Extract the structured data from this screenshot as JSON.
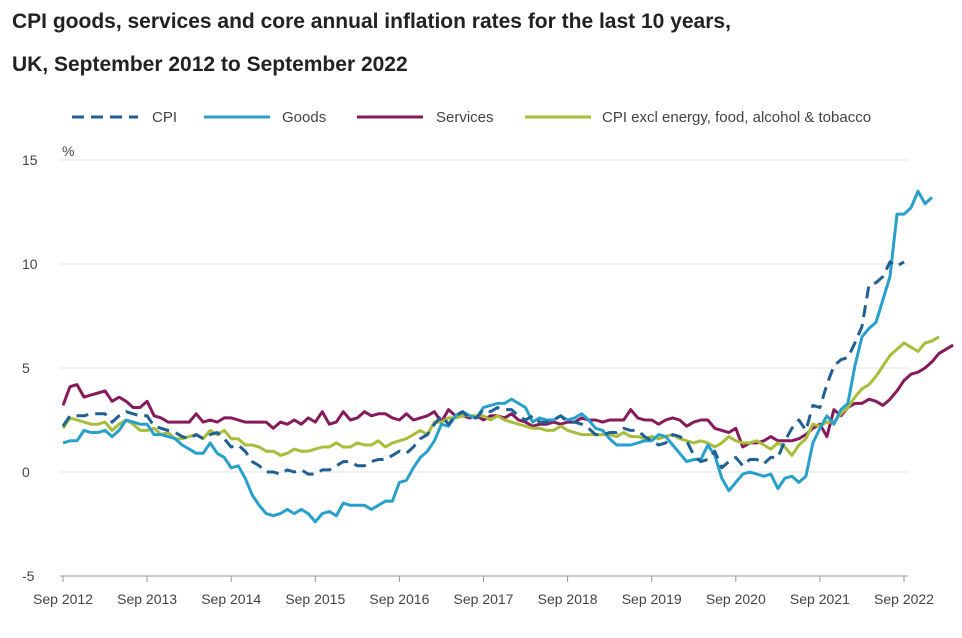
{
  "chart_data": {
    "type": "line",
    "title": "CPI goods, services and core annual inflation rates for the last 10 years,",
    "subtitle": "UK, September 2012 to September 2022",
    "ylabel": "%",
    "ylim": [
      -5,
      15
    ],
    "yticks": [
      "15",
      "10",
      "5",
      "0",
      "-5"
    ],
    "ytick_values": [
      15,
      10,
      5,
      0,
      -5
    ],
    "xticks": [
      "Sep 2012",
      "Sep 2013",
      "Sep 2014",
      "Sep 2015",
      "Sep 2016",
      "Sep 2017",
      "Sep 2018",
      "Sep 2019",
      "Sep 2020",
      "Sep 2021",
      "Sep 2022"
    ],
    "grid": true,
    "legend_position": "top",
    "series": [
      {
        "name": "CPI",
        "color": "#206095",
        "style": "dashed",
        "values": [
          2.2,
          2.7,
          2.7,
          2.7,
          2.8,
          2.8,
          2.8,
          2.4,
          2.7,
          2.9,
          2.8,
          2.7,
          2.7,
          2.2,
          2.1,
          2.0,
          1.9,
          1.7,
          1.6,
          1.8,
          1.6,
          1.8,
          1.9,
          1.6,
          1.2,
          1.3,
          1.0,
          0.5,
          0.3,
          0.0,
          0.0,
          -0.1,
          0.1,
          0.0,
          0.1,
          -0.1,
          -0.1,
          0.1,
          0.1,
          0.3,
          0.5,
          0.5,
          0.3,
          0.3,
          0.5,
          0.6,
          0.6,
          0.8,
          1.0,
          0.9,
          1.2,
          1.6,
          1.8,
          2.3,
          2.7,
          2.3,
          2.7,
          2.9,
          2.6,
          2.6,
          3.0,
          2.9,
          3.1,
          3.0,
          3.0,
          2.7,
          2.5,
          2.7,
          2.4,
          2.4,
          2.5,
          2.7,
          2.4,
          2.4,
          2.3,
          2.1,
          1.8,
          1.8,
          1.9,
          1.9,
          2.1,
          2.0,
          2.0,
          1.7,
          1.5,
          1.3,
          1.4,
          1.8,
          1.7,
          1.5,
          0.8,
          0.5,
          0.6,
          1.0,
          0.2,
          0.5,
          0.7,
          0.3,
          0.6,
          0.6,
          0.4,
          0.7,
          0.7,
          1.5,
          2.1,
          2.5,
          2.0,
          3.2,
          3.1,
          4.2,
          5.1,
          5.4,
          5.5,
          6.2,
          7.0,
          9.0,
          9.1,
          9.4,
          10.1,
          9.9,
          10.1
        ]
      },
      {
        "name": "Goods",
        "color": "#27a0cc",
        "style": "solid",
        "values": [
          1.4,
          1.5,
          1.5,
          2.0,
          1.9,
          1.9,
          2.0,
          1.7,
          2.0,
          2.5,
          2.4,
          2.3,
          2.3,
          1.8,
          1.8,
          1.7,
          1.6,
          1.3,
          1.1,
          0.9,
          0.9,
          1.4,
          0.9,
          0.7,
          0.2,
          0.3,
          -0.3,
          -1.1,
          -1.6,
          -2.0,
          -2.1,
          -2.0,
          -1.8,
          -2.0,
          -1.8,
          -2.0,
          -2.4,
          -2.0,
          -1.9,
          -2.1,
          -1.5,
          -1.6,
          -1.6,
          -1.6,
          -1.8,
          -1.6,
          -1.4,
          -1.4,
          -0.5,
          -0.4,
          0.2,
          0.7,
          1.0,
          1.5,
          2.3,
          2.2,
          2.7,
          2.9,
          2.7,
          2.6,
          3.1,
          3.2,
          3.3,
          3.3,
          3.5,
          3.3,
          3.1,
          2.4,
          2.6,
          2.5,
          2.5,
          2.7,
          2.5,
          2.6,
          2.8,
          2.5,
          2.1,
          2.0,
          1.6,
          1.3,
          1.3,
          1.3,
          1.4,
          1.5,
          1.5,
          1.8,
          1.7,
          1.3,
          0.9,
          0.5,
          0.6,
          0.6,
          1.3,
          0.8,
          -0.3,
          -0.9,
          -0.5,
          -0.1,
          0.0,
          -0.1,
          -0.2,
          -0.1,
          -0.8,
          -0.3,
          -0.2,
          -0.5,
          -0.2,
          1.4,
          2.1,
          2.7,
          2.3,
          3.0,
          3.3,
          5.1,
          6.5,
          6.9,
          7.2,
          8.3,
          9.4,
          12.4,
          12.4,
          12.7,
          13.5,
          12.9,
          13.2
        ]
      },
      {
        "name": "Services",
        "color": "#871a5b",
        "style": "solid",
        "values": [
          3.2,
          4.1,
          4.2,
          3.6,
          3.7,
          3.8,
          3.9,
          3.4,
          3.6,
          3.4,
          3.1,
          3.1,
          3.4,
          2.7,
          2.6,
          2.4,
          2.4,
          2.4,
          2.4,
          2.8,
          2.4,
          2.5,
          2.4,
          2.6,
          2.6,
          2.5,
          2.4,
          2.4,
          2.4,
          2.4,
          2.1,
          2.4,
          2.3,
          2.5,
          2.3,
          2.6,
          2.4,
          2.9,
          2.3,
          2.4,
          2.9,
          2.5,
          2.6,
          2.9,
          2.7,
          2.8,
          2.8,
          2.6,
          2.5,
          2.8,
          2.5,
          2.6,
          2.7,
          2.9,
          2.4,
          3.0,
          2.7,
          2.7,
          2.6,
          2.7,
          2.5,
          2.7,
          2.7,
          2.6,
          2.8,
          2.5,
          2.4,
          2.2,
          2.3,
          2.3,
          2.4,
          2.3,
          2.4,
          2.4,
          2.6,
          2.5,
          2.5,
          2.4,
          2.5,
          2.5,
          2.5,
          3.0,
          2.6,
          2.5,
          2.5,
          2.3,
          2.5,
          2.6,
          2.5,
          2.2,
          2.4,
          2.5,
          2.5,
          2.1,
          2.0,
          1.9,
          2.1,
          1.2,
          1.4,
          1.4,
          1.5,
          1.7,
          1.5,
          1.5,
          1.5,
          1.6,
          1.8,
          2.1,
          2.3,
          1.7,
          3.0,
          2.7,
          3.1,
          3.3,
          3.3,
          3.5,
          3.4,
          3.2,
          3.5,
          3.9,
          4.4,
          4.7,
          4.8,
          5.0,
          5.3,
          5.7,
          5.9,
          6.1
        ]
      },
      {
        "name": "CPI excl energy, food, alcohol & tobacco",
        "color": "#a8bd3a",
        "style": "solid",
        "values": [
          2.1,
          2.6,
          2.5,
          2.4,
          2.3,
          2.3,
          2.4,
          2.0,
          2.3,
          2.5,
          2.3,
          2.0,
          2.0,
          2.1,
          1.8,
          1.9,
          1.6,
          1.6,
          1.7,
          1.8,
          1.6,
          2.0,
          1.8,
          2.0,
          1.6,
          1.6,
          1.3,
          1.3,
          1.2,
          1.0,
          1.0,
          0.8,
          0.9,
          1.1,
          1.0,
          1.0,
          1.1,
          1.2,
          1.2,
          1.4,
          1.2,
          1.2,
          1.4,
          1.3,
          1.3,
          1.5,
          1.2,
          1.4,
          1.5,
          1.6,
          1.8,
          2.0,
          1.8,
          2.4,
          2.4,
          2.6,
          2.6,
          2.7,
          2.7,
          2.7,
          2.7,
          2.5,
          2.7,
          2.5,
          2.4,
          2.3,
          2.2,
          2.1,
          2.1,
          2.0,
          2.0,
          2.2,
          2.0,
          1.9,
          1.8,
          1.8,
          1.8,
          1.8,
          1.8,
          1.7,
          1.9,
          1.7,
          1.7,
          1.6,
          1.7,
          1.6,
          1.7,
          1.8,
          1.6,
          1.5,
          1.4,
          1.5,
          1.4,
          1.2,
          1.4,
          1.7,
          1.5,
          1.4,
          1.4,
          1.5,
          1.3,
          1.1,
          1.4,
          1.2,
          0.8,
          1.3,
          1.6,
          2.3,
          2.2,
          2.4,
          2.4,
          2.8,
          3.1,
          3.6,
          4.0,
          4.2,
          4.6,
          5.1,
          5.6,
          5.9,
          6.2,
          6.0,
          5.8,
          6.2,
          6.3,
          6.5
        ]
      }
    ]
  }
}
